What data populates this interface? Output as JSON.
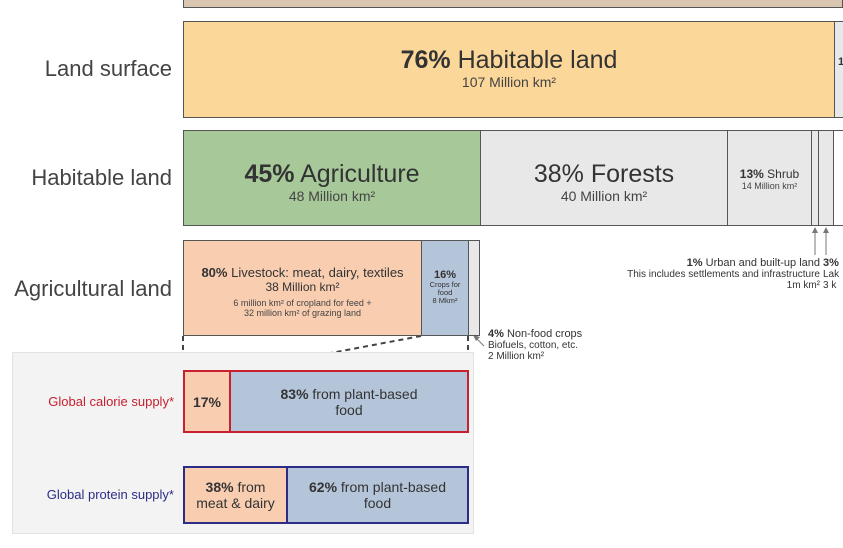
{
  "rows": {
    "land_surface": "Land surface",
    "habitable_land": "Habitable land",
    "agricultural_land": "Agricultural land"
  },
  "land_surface": {
    "habitable_pct": "76%",
    "habitable_label": "Habitable land",
    "habitable_area": "107 Million km²",
    "cut_label": "1"
  },
  "habitable": {
    "agriculture_pct": "45%",
    "agriculture_label": "Agriculture",
    "agriculture_area": "48 Million km²",
    "forests_pct": "38%",
    "forests_label": "Forests",
    "forests_area": "40 Million km²",
    "shrub_pct": "13%",
    "shrub_label": "Shrub",
    "shrub_area": "14 Million km²"
  },
  "urban": {
    "pct": "1%",
    "label": "Urban and built-up land",
    "desc": "This includes settlements and infrastructure",
    "area": "1m km²"
  },
  "lakes": {
    "pct": "3%",
    "label": "Lak",
    "area": "3 k"
  },
  "agricultural": {
    "livestock_pct": "80%",
    "livestock_label": "Livestock: meat, dairy, textiles",
    "livestock_area": "38 Million km²",
    "livestock_desc1": "6 million km² of cropland for feed +",
    "livestock_desc2": "32 million km² of grazing land",
    "crops_pct": "16%",
    "crops_label1": "Crops for",
    "crops_label2": "food",
    "crops_area": "8 Mkm²",
    "nonfood_pct": "4%",
    "nonfood_label": "Non-food crops",
    "nonfood_desc": "Biofuels, cotton, etc.",
    "nonfood_area": "2 Million km²"
  },
  "calorie": {
    "label": "Global calorie supply*",
    "animal_pct": "17%",
    "plant_pct": "83%",
    "plant_label1": "from plant-based",
    "plant_label2": "food"
  },
  "protein": {
    "label": "Global protein supply*",
    "animal_pct": "38%",
    "animal_label1": "from",
    "animal_label2": "meat & dairy",
    "plant_pct": "62%",
    "plant_label1": "from plant-based",
    "plant_label2": "food"
  },
  "colors": {
    "habitable": "#fcd79a",
    "agriculture": "#a7c99a",
    "forests": "#e8e8e8",
    "livestock": "#f8cdb0",
    "crops": "#b4c4d9",
    "calorie_border": "#c7202f",
    "protein_border": "#2c2c86"
  }
}
